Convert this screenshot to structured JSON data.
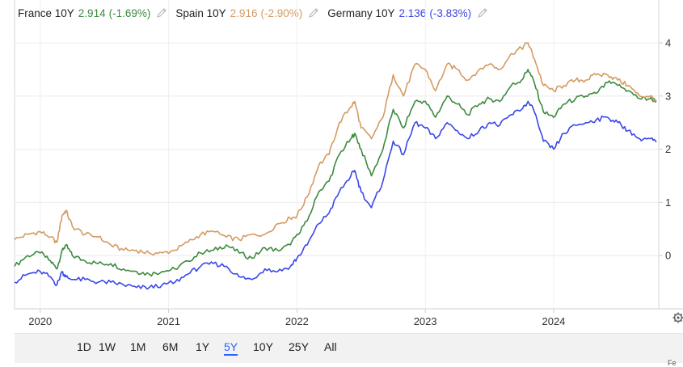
{
  "legend": [
    {
      "label": "France 10Y",
      "value": "2.914",
      "change": "(-1.69%)",
      "color": "#3c8a3f"
    },
    {
      "label": "Spain 10Y",
      "value": "2.916",
      "change": "(-2.90%)",
      "color": "#d59a61"
    },
    {
      "label": "Germany 10Y",
      "value": "2.136",
      "change": "(-3.83%)",
      "color": "#3a47e6"
    }
  ],
  "legend_edit_icon": "pencil-icon",
  "range_buttons": [
    "1D",
    "1W",
    "1M",
    "6M",
    "1Y",
    "5Y",
    "10Y",
    "25Y",
    "All"
  ],
  "active_range": "5Y",
  "settings_icon": "gear-icon",
  "corner_text": "Fe",
  "chart_data": {
    "type": "line",
    "x_unit": "year",
    "xlim": [
      2019.8,
      2024.8
    ],
    "ylim": [
      -1.0,
      4.35
    ],
    "y_ticks": [
      "4",
      "3",
      "2",
      "1",
      "0"
    ],
    "x_ticks": [
      "2020",
      "2021",
      "2022",
      "2023",
      "2024"
    ],
    "grid": true,
    "x": [
      2019.8,
      2019.9,
      2020.0,
      2020.08,
      2020.13,
      2020.17,
      2020.2,
      2020.25,
      2020.35,
      2020.45,
      2020.55,
      2020.65,
      2020.75,
      2020.85,
      2020.95,
      2021.05,
      2021.15,
      2021.25,
      2021.35,
      2021.45,
      2021.55,
      2021.65,
      2021.75,
      2021.85,
      2021.95,
      2022.0,
      2022.08,
      2022.17,
      2022.25,
      2022.33,
      2022.42,
      2022.45,
      2022.5,
      2022.58,
      2022.67,
      2022.75,
      2022.83,
      2022.92,
      2023.0,
      2023.08,
      2023.17,
      2023.25,
      2023.33,
      2023.42,
      2023.5,
      2023.58,
      2023.67,
      2023.75,
      2023.8,
      2023.85,
      2023.92,
      2024.0,
      2024.08,
      2024.17,
      2024.25,
      2024.33,
      2024.42,
      2024.5,
      2024.58,
      2024.67,
      2024.75,
      2024.8
    ],
    "series": [
      {
        "name": "France 10Y",
        "color": "#3c8a3f",
        "values": [
          -0.2,
          0.0,
          0.05,
          -0.1,
          -0.25,
          0.1,
          0.2,
          0.0,
          -0.1,
          -0.15,
          -0.15,
          -0.25,
          -0.3,
          -0.35,
          -0.3,
          -0.25,
          -0.1,
          0.05,
          0.1,
          0.2,
          0.05,
          -0.05,
          0.15,
          0.1,
          0.2,
          0.4,
          0.65,
          1.2,
          1.4,
          1.9,
          2.2,
          2.3,
          2.0,
          1.5,
          2.0,
          2.75,
          2.4,
          2.9,
          2.9,
          2.6,
          3.0,
          2.85,
          2.65,
          2.85,
          2.95,
          2.9,
          3.2,
          3.3,
          3.5,
          3.25,
          2.7,
          2.6,
          2.85,
          2.95,
          3.0,
          3.05,
          3.25,
          3.2,
          3.1,
          2.95,
          2.95,
          2.914
        ]
      },
      {
        "name": "Spain 10Y",
        "color": "#d59a61",
        "values": [
          0.3,
          0.4,
          0.45,
          0.35,
          0.25,
          0.75,
          0.85,
          0.55,
          0.4,
          0.35,
          0.2,
          0.1,
          0.1,
          0.05,
          0.05,
          0.1,
          0.25,
          0.4,
          0.45,
          0.35,
          0.3,
          0.4,
          0.4,
          0.6,
          0.7,
          0.75,
          1.1,
          1.7,
          1.9,
          2.5,
          2.8,
          2.9,
          2.4,
          2.2,
          2.6,
          3.4,
          3.0,
          3.6,
          3.5,
          3.1,
          3.6,
          3.5,
          3.3,
          3.5,
          3.6,
          3.5,
          3.8,
          3.9,
          4.0,
          3.7,
          3.2,
          3.1,
          3.2,
          3.3,
          3.3,
          3.4,
          3.4,
          3.3,
          3.2,
          3.0,
          3.0,
          2.916
        ]
      },
      {
        "name": "Germany 10Y",
        "color": "#3a47e6",
        "values": [
          -0.5,
          -0.35,
          -0.3,
          -0.4,
          -0.55,
          -0.3,
          -0.4,
          -0.45,
          -0.45,
          -0.5,
          -0.5,
          -0.55,
          -0.6,
          -0.6,
          -0.55,
          -0.5,
          -0.35,
          -0.2,
          -0.15,
          -0.2,
          -0.4,
          -0.45,
          -0.25,
          -0.3,
          -0.2,
          -0.05,
          0.2,
          0.6,
          0.8,
          1.2,
          1.5,
          1.6,
          1.2,
          0.9,
          1.4,
          2.15,
          1.9,
          2.5,
          2.4,
          2.2,
          2.5,
          2.35,
          2.2,
          2.35,
          2.5,
          2.45,
          2.65,
          2.75,
          2.9,
          2.7,
          2.15,
          2.0,
          2.3,
          2.45,
          2.5,
          2.55,
          2.6,
          2.5,
          2.35,
          2.2,
          2.2,
          2.136
        ]
      }
    ]
  }
}
